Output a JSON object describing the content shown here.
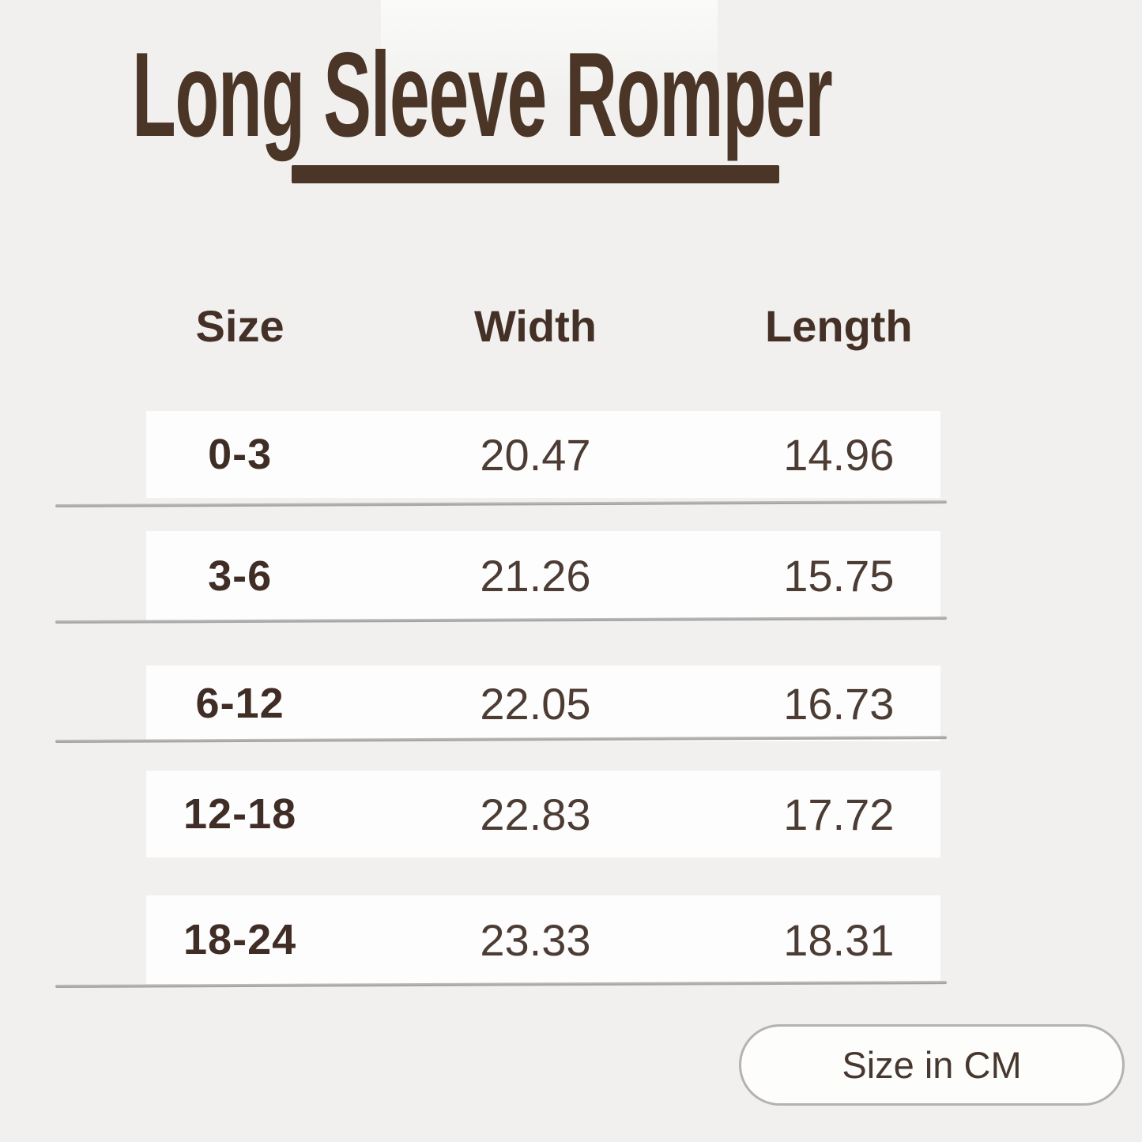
{
  "page": {
    "title": "Long Sleeve Romper"
  },
  "table": {
    "headers": {
      "size": "Size",
      "width": "Width",
      "length": "Length"
    },
    "rows": [
      {
        "size": "0-3",
        "width": "20.47",
        "length": "14.96"
      },
      {
        "size": "3-6",
        "width": "21.26",
        "length": "15.75"
      },
      {
        "size": "6-12",
        "width": "22.05",
        "length": "16.73"
      },
      {
        "size": "12-18",
        "width": "22.83",
        "length": "17.72"
      },
      {
        "size": "18-24",
        "width": "23.33",
        "length": "18.31"
      }
    ]
  },
  "badge": {
    "label": "Size in CM"
  },
  "colors": {
    "accent_brown": "#4a3527",
    "header_text": "#443026",
    "size_text": "#3f2d26",
    "number_text": "#4c3c34",
    "background": "#f1f0ee",
    "row_background": "#fdfdfd",
    "divider_gray": "#a8a7a5",
    "pill_border": "#b5b2af"
  }
}
